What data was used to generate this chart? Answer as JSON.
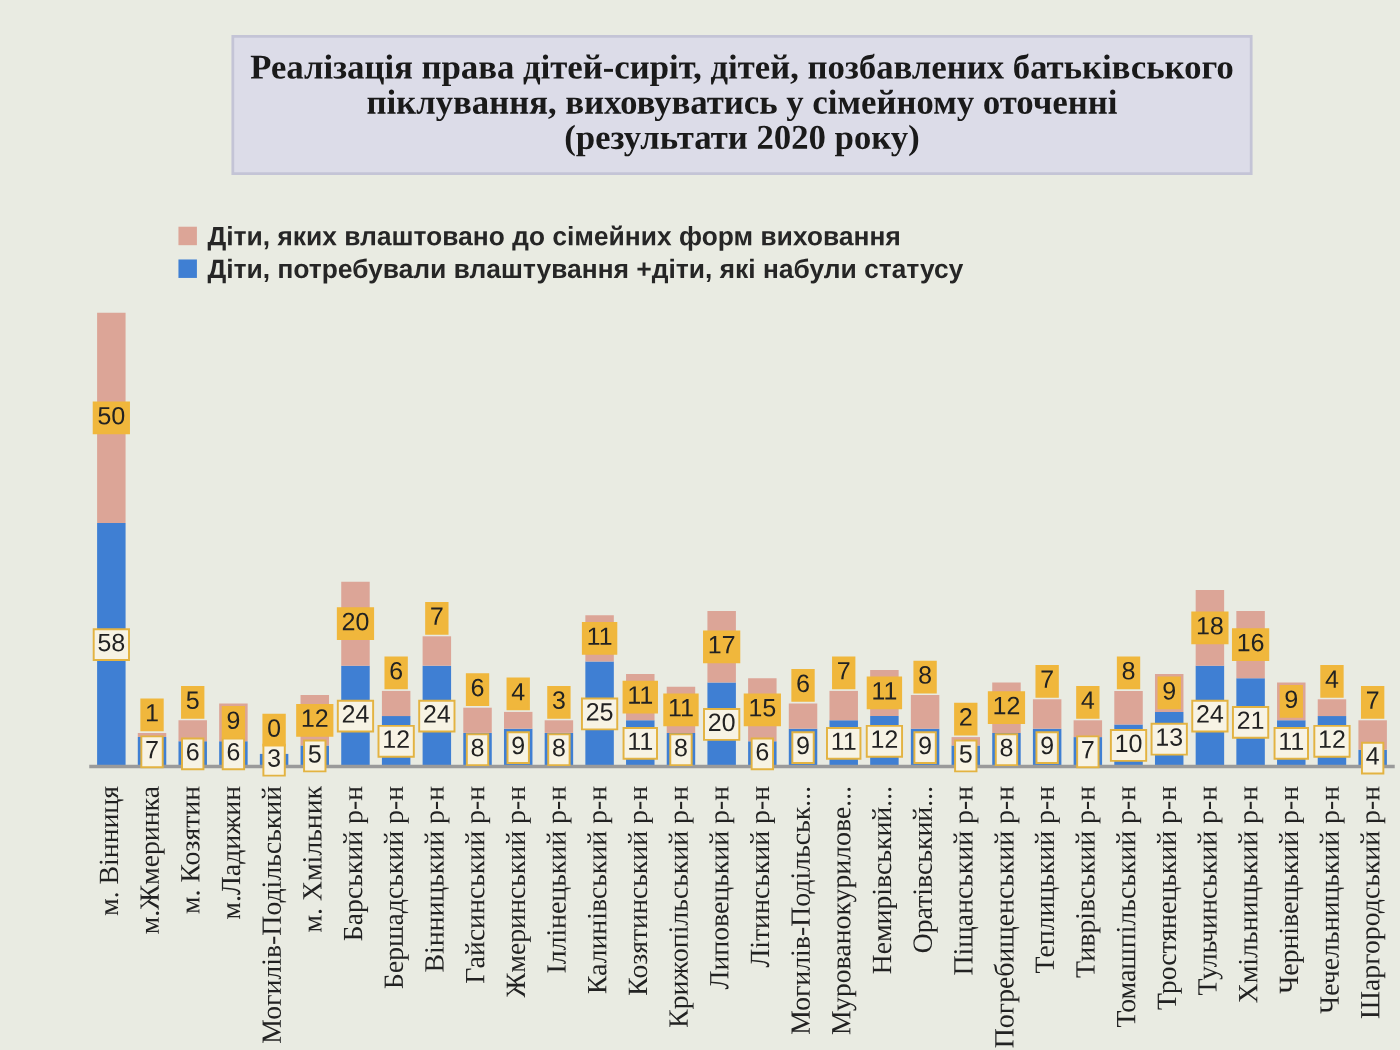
{
  "chart_data": {
    "type": "bar",
    "title": "Реалізація права дітей-сиріт, дітей, позбавлених батьківського\nпіклування, виховуватись у сімейному оточенні\n(результати 2020 року)",
    "categories": [
      "м. Вінниця",
      "м.Жмеринка",
      "м. Козятин",
      "м.Ладижин",
      "Могилів-Подільський",
      "м. Хмільник",
      "Барський р-н",
      "Бершадський р-н",
      "Вінницький р-н",
      "Гайсинський р-н",
      "Жмеринський р-н",
      "Іллінецький р-н",
      "Калинівський р-н",
      "Козятинський р-н",
      "Крижопільський р-н",
      "Липовецький р-н",
      "Літинський р-н",
      "Могилів-Подільськ...",
      "Мурованокурилове...",
      "Немирівський...",
      "Оратівський...",
      "Піщанський р-н",
      "Погребищенський р-н",
      "Теплицький р-н",
      "Тиврівський р-н",
      "Томашпільський р-н",
      "Тростянецький р-н",
      "Тульчинський р-н",
      "Хмільницький р-н",
      "Чернівецький р-н",
      "Чечельницький р-н",
      "Шаргородський р-н"
    ],
    "series": [
      {
        "name": "Діти, потребували влаштування +діти, які набули статусу",
        "color": "#3f7fd3",
        "values": [
          58,
          7,
          6,
          6,
          3,
          5,
          24,
          12,
          24,
          8,
          9,
          8,
          25,
          11,
          8,
          20,
          6,
          9,
          11,
          12,
          9,
          5,
          8,
          9,
          7,
          10,
          13,
          24,
          21,
          11,
          12,
          4
        ]
      },
      {
        "name": "Діти, яких влаштовано до сімейних форм виховання",
        "color": "#dca597",
        "values": [
          50,
          1,
          5,
          9,
          0,
          12,
          20,
          6,
          7,
          6,
          4,
          3,
          11,
          11,
          11,
          17,
          15,
          6,
          7,
          11,
          8,
          2,
          12,
          7,
          4,
          8,
          9,
          18,
          16,
          9,
          4,
          7
        ]
      }
    ],
    "stacked": true,
    "data_labels": true,
    "legend": "top left"
  }
}
